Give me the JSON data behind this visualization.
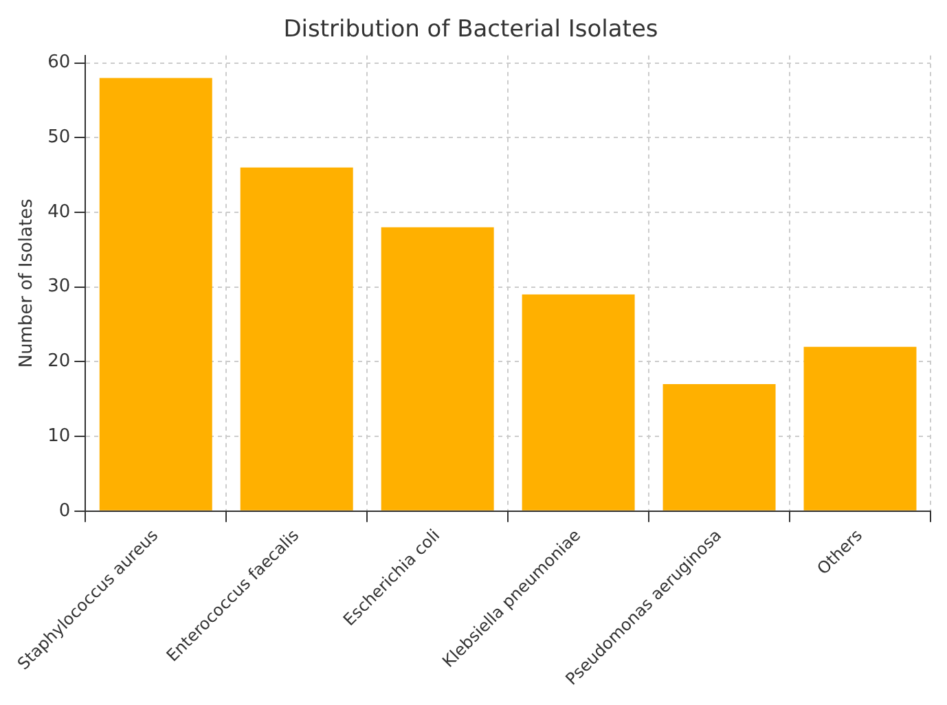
{
  "chart_data": {
    "type": "bar",
    "title": "Distribution of Bacterial Isolates",
    "ylabel": "Number of Isolates",
    "categories": [
      "Staphylococcus aureus",
      "Enterococcus faecalis",
      "Escherichia coli",
      "Klebsiella pneumoniae",
      "Pseudomonas aeruginosa",
      "Others"
    ],
    "values": [
      58,
      46,
      38,
      29,
      17,
      22
    ],
    "color": "#ffb000",
    "ylim": [
      0,
      61
    ],
    "yticks": [
      0,
      10,
      20,
      30,
      40,
      50,
      60
    ],
    "grid": true
  }
}
